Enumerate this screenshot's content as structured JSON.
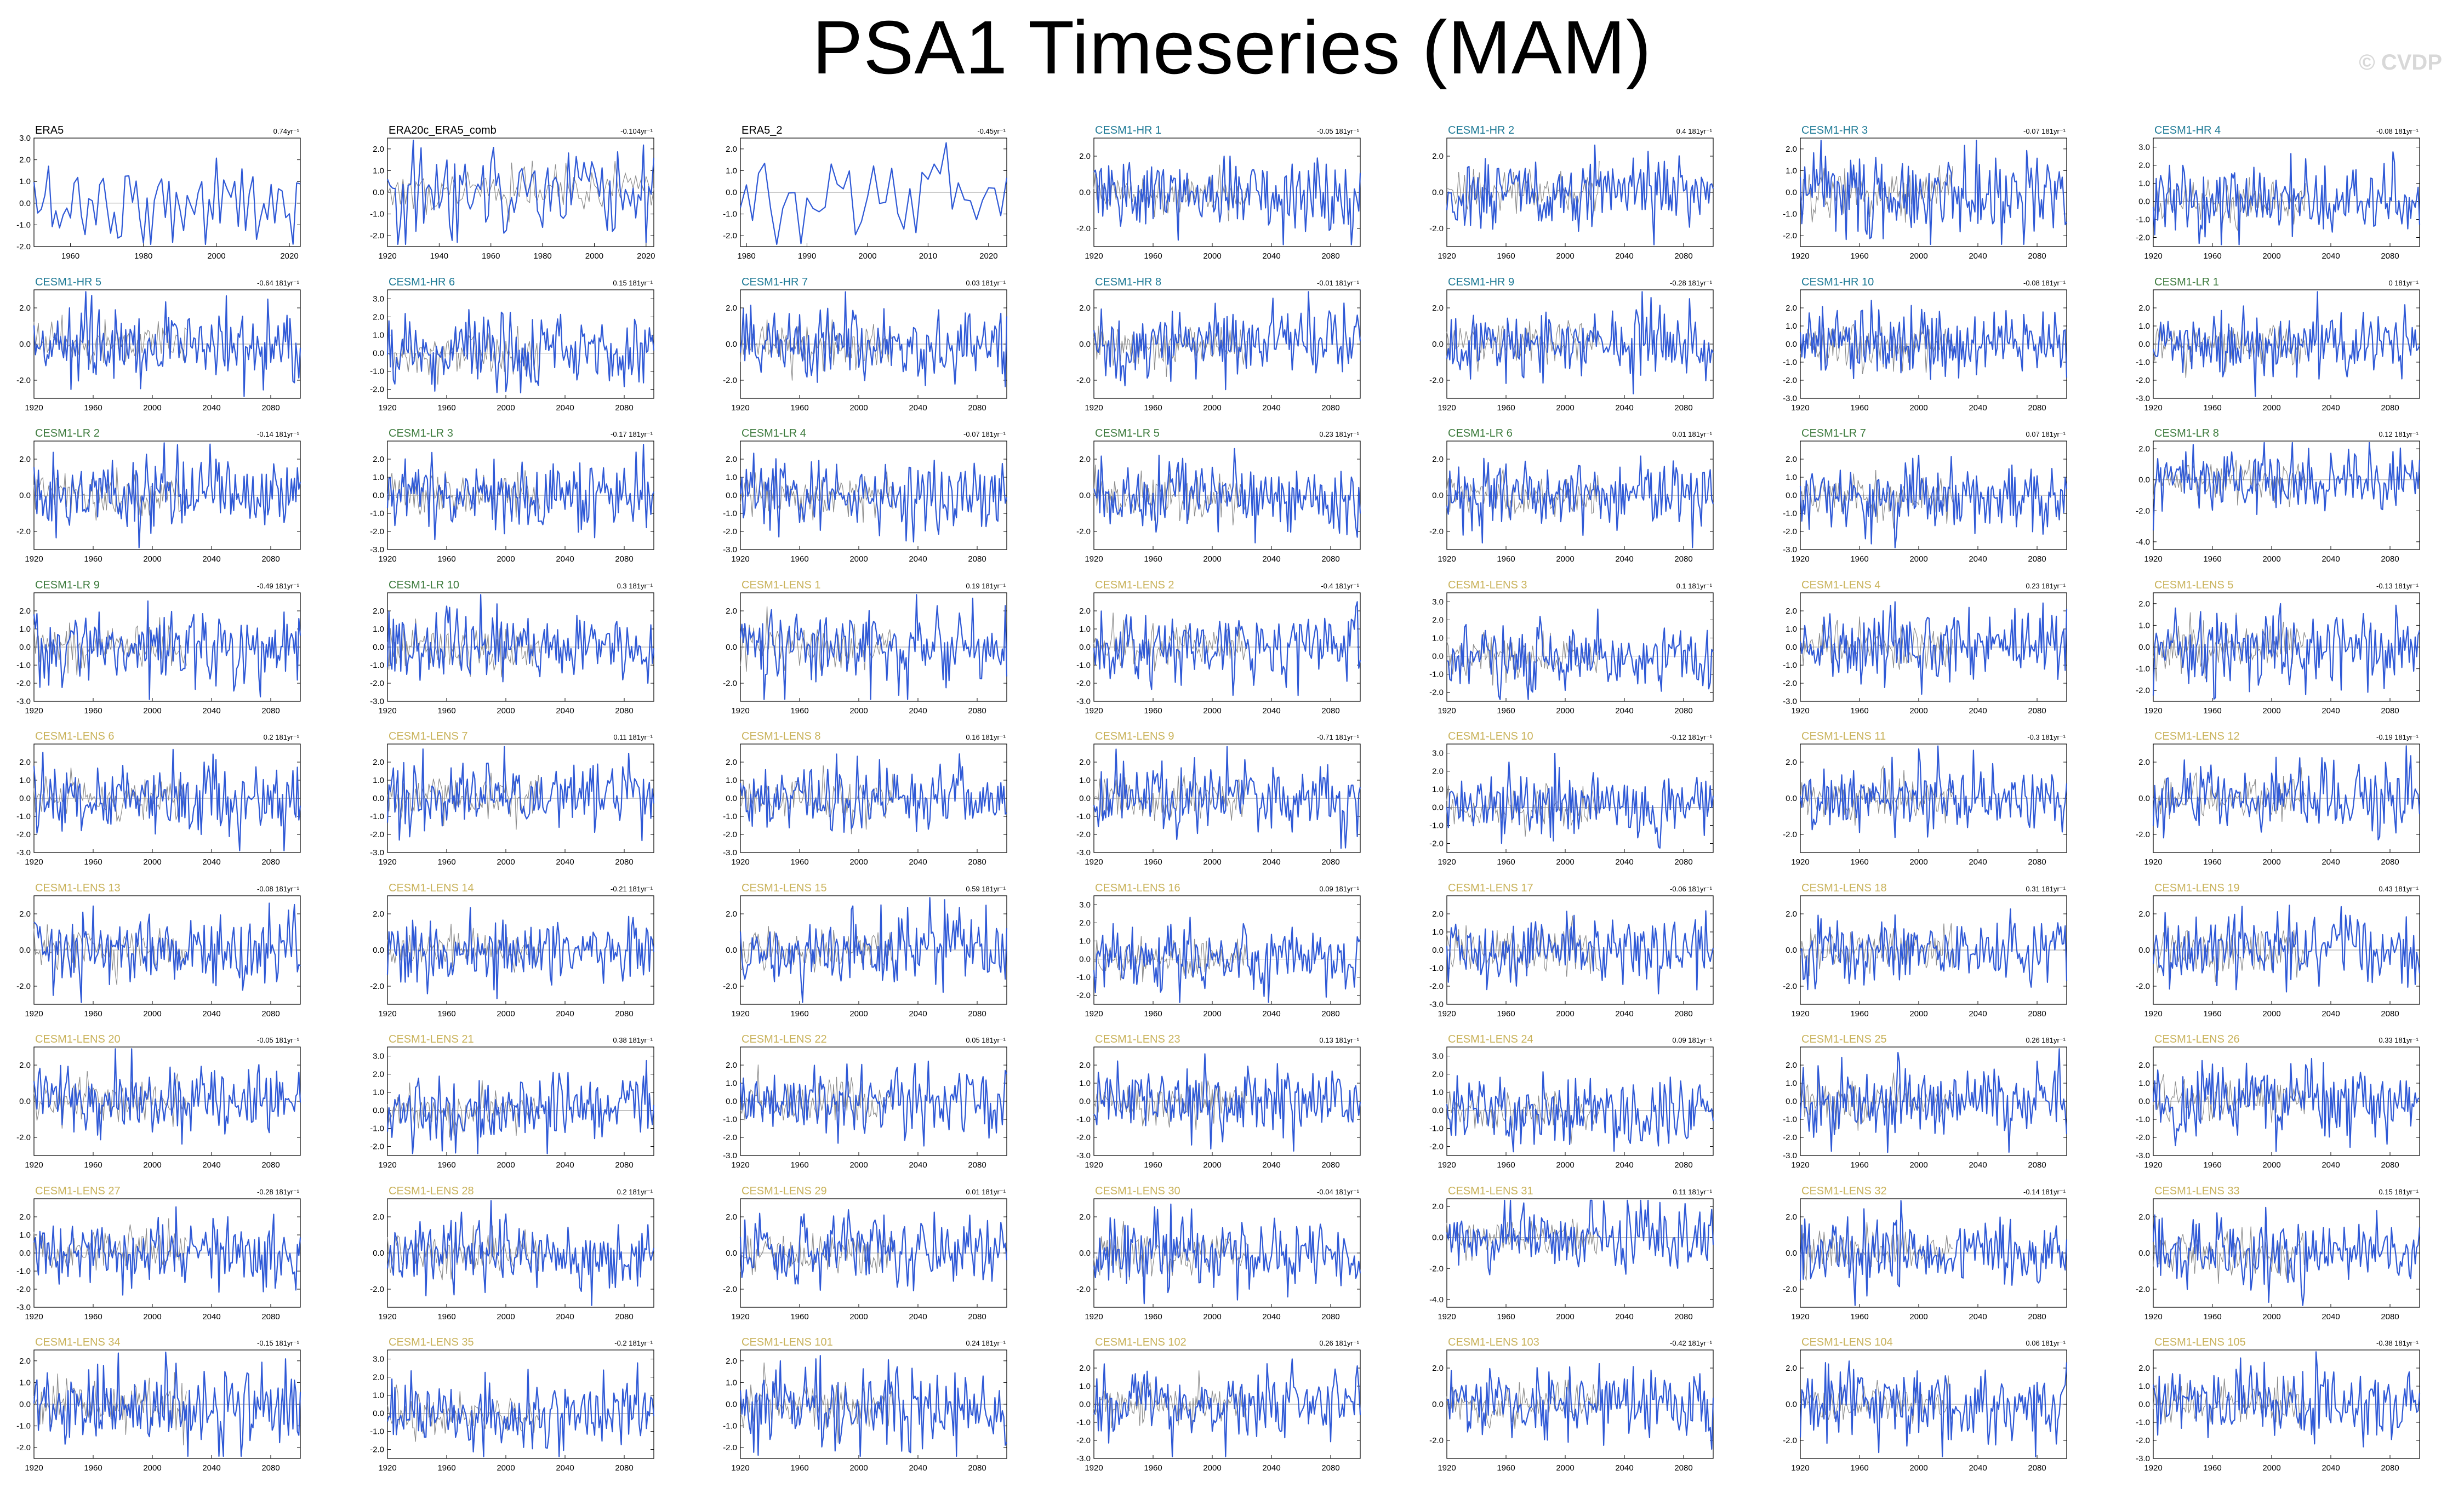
{
  "title": "PSA1 Timeseries (MAM)",
  "watermark": "© CVDP",
  "colors": {
    "series": "#2f59d6",
    "reference": "#8c8c8c",
    "zero_line": "#9a9a9a",
    "title_obs": "#000000",
    "title_hr": "#1e7a96",
    "title_lr": "#3c7a3c",
    "title_lens": "#c9b25a"
  },
  "chart_data": [
    {
      "type": "line",
      "title": "ERA5",
      "trend": "0.74yr⁻¹",
      "group": "obs",
      "x_range": [
        1950,
        2023
      ],
      "xticks": [
        1960,
        1980,
        2000,
        2020
      ],
      "yticks": [
        3.0,
        2.0,
        1.0,
        0.0,
        -1.0,
        -2.0
      ],
      "ylim": [
        -2.0,
        3.0
      ]
    },
    {
      "type": "line",
      "title": "ERA20c_ERA5_comb",
      "trend": "-0.104yr⁻¹",
      "group": "obs",
      "x_range": [
        1920,
        2023
      ],
      "xticks": [
        1920,
        1940,
        1960,
        1980,
        2000,
        2020
      ],
      "yticks": [
        2.0,
        1.0,
        0.0,
        -1.0,
        -2.0
      ],
      "ylim": [
        -2.5,
        2.5
      ]
    },
    {
      "type": "line",
      "title": "ERA5_2",
      "trend": "-0.45yr⁻¹",
      "group": "obs",
      "x_range": [
        1979,
        2023
      ],
      "xticks": [
        1980,
        1990,
        2000,
        2010,
        2020
      ],
      "yticks": [
        2.0,
        1.0,
        0.0,
        -1.0,
        -2.0
      ],
      "ylim": [
        -2.5,
        2.5
      ]
    },
    {
      "type": "line",
      "title": "CESM1-HR 1",
      "trend": "-0.05 181yr⁻¹",
      "group": "hr",
      "yticks": [
        2.0,
        0.0,
        -2.0
      ],
      "ylim": [
        -3.0,
        3.0
      ]
    },
    {
      "type": "line",
      "title": "CESM1-HR 2",
      "trend": "0.4 181yr⁻¹",
      "group": "hr",
      "yticks": [
        2.0,
        0.0,
        -2.0
      ],
      "ylim": [
        -3.0,
        3.0
      ]
    },
    {
      "type": "line",
      "title": "CESM1-HR 3",
      "trend": "-0.07 181yr⁻¹",
      "group": "hr",
      "yticks": [
        2.0,
        1.0,
        0.0,
        -1.0,
        -2.0
      ],
      "ylim": [
        -2.5,
        2.5
      ]
    },
    {
      "type": "line",
      "title": "CESM1-HR 4",
      "trend": "-0.08 181yr⁻¹",
      "group": "hr",
      "yticks": [
        3.0,
        2.0,
        1.0,
        0.0,
        -1.0,
        -2.0
      ],
      "ylim": [
        -2.5,
        3.5
      ]
    },
    {
      "type": "line",
      "title": "CESM1-HR 5",
      "trend": "-0.64 181yr⁻¹",
      "group": "hr",
      "yticks": [
        2.0,
        0.0,
        -2.0
      ],
      "ylim": [
        -3.0,
        3.0
      ]
    },
    {
      "type": "line",
      "title": "CESM1-HR 6",
      "trend": "0.15 181yr⁻¹",
      "group": "hr",
      "yticks": [
        3.0,
        2.0,
        1.0,
        0.0,
        -1.0,
        -2.0
      ],
      "ylim": [
        -2.5,
        3.5
      ]
    },
    {
      "type": "line",
      "title": "CESM1-HR 7",
      "trend": "0.03 181yr⁻¹",
      "group": "hr",
      "yticks": [
        2.0,
        0.0,
        -2.0
      ],
      "ylim": [
        -3.0,
        3.0
      ]
    },
    {
      "type": "line",
      "title": "CESM1-HR 8",
      "trend": "-0.01 181yr⁻¹",
      "group": "hr",
      "yticks": [
        2.0,
        0.0,
        -2.0
      ],
      "ylim": [
        -3.0,
        3.0
      ]
    },
    {
      "type": "line",
      "title": "CESM1-HR 9",
      "trend": "-0.28 181yr⁻¹",
      "group": "hr",
      "yticks": [
        2.0,
        0.0,
        -2.0
      ],
      "ylim": [
        -3.0,
        3.0
      ]
    },
    {
      "type": "line",
      "title": "CESM1-HR 10",
      "trend": "-0.08 181yr⁻¹",
      "group": "hr",
      "yticks": [
        2.0,
        1.0,
        0.0,
        -1.0,
        -2.0,
        -3.0
      ],
      "ylim": [
        -3.0,
        3.0
      ]
    },
    {
      "type": "line",
      "title": "CESM1-LR 1",
      "trend": "0 181yr⁻¹",
      "group": "lr",
      "yticks": [
        2.0,
        1.0,
        0.0,
        -1.0,
        -2.0,
        -3.0
      ],
      "ylim": [
        -3.0,
        3.0
      ]
    },
    {
      "type": "line",
      "title": "CESM1-LR 2",
      "trend": "-0.14 181yr⁻¹",
      "group": "lr",
      "yticks": [
        2.0,
        0.0,
        -2.0
      ],
      "ylim": [
        -3.0,
        3.0
      ]
    },
    {
      "type": "line",
      "title": "CESM1-LR 3",
      "trend": "-0.17 181yr⁻¹",
      "group": "lr",
      "yticks": [
        2.0,
        1.0,
        0.0,
        -1.0,
        -2.0,
        -3.0
      ],
      "ylim": [
        -3.0,
        3.0
      ]
    },
    {
      "type": "line",
      "title": "CESM1-LR 4",
      "trend": "-0.07 181yr⁻¹",
      "group": "lr",
      "yticks": [
        2.0,
        1.0,
        0.0,
        -1.0,
        -2.0,
        -3.0
      ],
      "ylim": [
        -3.0,
        3.0
      ]
    },
    {
      "type": "line",
      "title": "CESM1-LR 5",
      "trend": "0.23 181yr⁻¹",
      "group": "lr",
      "yticks": [
        2.0,
        0.0,
        -2.0
      ],
      "ylim": [
        -3.0,
        3.0
      ]
    },
    {
      "type": "line",
      "title": "CESM1-LR 6",
      "trend": "0.01 181yr⁻¹",
      "group": "lr",
      "yticks": [
        2.0,
        0.0,
        -2.0
      ],
      "ylim": [
        -3.0,
        3.0
      ]
    },
    {
      "type": "line",
      "title": "CESM1-LR 7",
      "trend": "0.07 181yr⁻¹",
      "group": "lr",
      "yticks": [
        2.0,
        1.0,
        0.0,
        -1.0,
        -2.0,
        -3.0
      ],
      "ylim": [
        -3.0,
        3.0
      ]
    },
    {
      "type": "line",
      "title": "CESM1-LR 8",
      "trend": "0.12 181yr⁻¹",
      "group": "lr",
      "yticks": [
        2.0,
        0.0,
        -2.0,
        -4.0
      ],
      "ylim": [
        -4.5,
        2.5
      ]
    },
    {
      "type": "line",
      "title": "CESM1-LR 9",
      "trend": "-0.49 181yr⁻¹",
      "group": "lr",
      "yticks": [
        2.0,
        1.0,
        0.0,
        -1.0,
        -2.0,
        -3.0
      ],
      "ylim": [
        -3.0,
        3.0
      ]
    },
    {
      "type": "line",
      "title": "CESM1-LR 10",
      "trend": "0.3 181yr⁻¹",
      "group": "lr",
      "yticks": [
        2.0,
        1.0,
        0.0,
        -1.0,
        -2.0,
        -3.0
      ],
      "ylim": [
        -3.0,
        3.0
      ]
    },
    {
      "type": "line",
      "title": "CESM1-LENS 1",
      "trend": "0.19 181yr⁻¹",
      "group": "lens",
      "yticks": [
        2.0,
        0.0,
        -2.0
      ],
      "ylim": [
        -3.0,
        3.0
      ]
    },
    {
      "type": "line",
      "title": "CESM1-LENS 2",
      "trend": "-0.4 181yr⁻¹",
      "group": "lens",
      "yticks": [
        2.0,
        1.0,
        0.0,
        -1.0,
        -2.0,
        -3.0
      ],
      "ylim": [
        -3.0,
        3.0
      ]
    },
    {
      "type": "line",
      "title": "CESM1-LENS 3",
      "trend": "0.1 181yr⁻¹",
      "group": "lens",
      "yticks": [
        3.0,
        2.0,
        1.0,
        0.0,
        -1.0,
        -2.0
      ],
      "ylim": [
        -2.5,
        3.5
      ]
    },
    {
      "type": "line",
      "title": "CESM1-LENS 4",
      "trend": "0.23 181yr⁻¹",
      "group": "lens",
      "yticks": [
        2.0,
        1.0,
        0.0,
        -1.0,
        -2.0,
        -3.0
      ],
      "ylim": [
        -3.0,
        3.0
      ]
    },
    {
      "type": "line",
      "title": "CESM1-LENS 5",
      "trend": "-0.13 181yr⁻¹",
      "group": "lens",
      "yticks": [
        2.0,
        1.0,
        0.0,
        -1.0,
        -2.0
      ],
      "ylim": [
        -2.5,
        2.5
      ]
    },
    {
      "type": "line",
      "title": "CESM1-LENS 6",
      "trend": "0.2 181yr⁻¹",
      "group": "lens",
      "yticks": [
        2.0,
        1.0,
        0.0,
        -1.0,
        -2.0,
        -3.0
      ],
      "ylim": [
        -3.0,
        3.0
      ]
    },
    {
      "type": "line",
      "title": "CESM1-LENS 7",
      "trend": "0.11 181yr⁻¹",
      "group": "lens",
      "yticks": [
        2.0,
        1.0,
        0.0,
        -1.0,
        -2.0,
        -3.0
      ],
      "ylim": [
        -3.0,
        3.0
      ]
    },
    {
      "type": "line",
      "title": "CESM1-LENS 8",
      "trend": "0.16 181yr⁻¹",
      "group": "lens",
      "yticks": [
        2.0,
        1.0,
        0.0,
        -1.0,
        -2.0,
        -3.0
      ],
      "ylim": [
        -3.0,
        3.0
      ]
    },
    {
      "type": "line",
      "title": "CESM1-LENS 9",
      "trend": "-0.71 181yr⁻¹",
      "group": "lens",
      "yticks": [
        2.0,
        1.0,
        0.0,
        -1.0,
        -2.0,
        -3.0
      ],
      "ylim": [
        -3.0,
        3.0
      ]
    },
    {
      "type": "line",
      "title": "CESM1-LENS 10",
      "trend": "-0.12 181yr⁻¹",
      "group": "lens",
      "yticks": [
        3.0,
        2.0,
        1.0,
        0.0,
        -1.0,
        -2.0
      ],
      "ylim": [
        -2.5,
        3.5
      ]
    },
    {
      "type": "line",
      "title": "CESM1-LENS 11",
      "trend": "-0.3 181yr⁻¹",
      "group": "lens",
      "yticks": [
        2.0,
        0.0,
        -2.0
      ],
      "ylim": [
        -3.0,
        3.0
      ]
    },
    {
      "type": "line",
      "title": "CESM1-LENS 12",
      "trend": "-0.19 181yr⁻¹",
      "group": "lens",
      "yticks": [
        2.0,
        0.0,
        -2.0
      ],
      "ylim": [
        -3.0,
        3.0
      ]
    },
    {
      "type": "line",
      "title": "CESM1-LENS 13",
      "trend": "-0.08 181yr⁻¹",
      "group": "lens",
      "yticks": [
        2.0,
        0.0,
        -2.0
      ],
      "ylim": [
        -3.0,
        3.0
      ]
    },
    {
      "type": "line",
      "title": "CESM1-LENS 14",
      "trend": "-0.21 181yr⁻¹",
      "group": "lens",
      "yticks": [
        2.0,
        0.0,
        -2.0
      ],
      "ylim": [
        -3.0,
        3.0
      ]
    },
    {
      "type": "line",
      "title": "CESM1-LENS 15",
      "trend": "0.59 181yr⁻¹",
      "group": "lens",
      "yticks": [
        2.0,
        0.0,
        -2.0
      ],
      "ylim": [
        -3.0,
        3.0
      ]
    },
    {
      "type": "line",
      "title": "CESM1-LENS 16",
      "trend": "0.09 181yr⁻¹",
      "group": "lens",
      "yticks": [
        3.0,
        2.0,
        1.0,
        0.0,
        -1.0,
        -2.0
      ],
      "ylim": [
        -2.5,
        3.5
      ]
    },
    {
      "type": "line",
      "title": "CESM1-LENS 17",
      "trend": "-0.06 181yr⁻¹",
      "group": "lens",
      "yticks": [
        2.0,
        1.0,
        0.0,
        -1.0,
        -2.0,
        -3.0
      ],
      "ylim": [
        -3.0,
        3.0
      ]
    },
    {
      "type": "line",
      "title": "CESM1-LENS 18",
      "trend": "0.31 181yr⁻¹",
      "group": "lens",
      "yticks": [
        2.0,
        0.0,
        -2.0
      ],
      "ylim": [
        -3.0,
        3.0
      ]
    },
    {
      "type": "line",
      "title": "CESM1-LENS 19",
      "trend": "0.43 181yr⁻¹",
      "group": "lens",
      "yticks": [
        2.0,
        0.0,
        -2.0
      ],
      "ylim": [
        -3.0,
        3.0
      ]
    },
    {
      "type": "line",
      "title": "CESM1-LENS 20",
      "trend": "-0.05 181yr⁻¹",
      "group": "lens",
      "yticks": [
        2.0,
        0.0,
        -2.0
      ],
      "ylim": [
        -3.0,
        3.0
      ]
    },
    {
      "type": "line",
      "title": "CESM1-LENS 21",
      "trend": "0.38 181yr⁻¹",
      "group": "lens",
      "yticks": [
        3.0,
        2.0,
        1.0,
        0.0,
        -1.0,
        -2.0
      ],
      "ylim": [
        -2.5,
        3.5
      ]
    },
    {
      "type": "line",
      "title": "CESM1-LENS 22",
      "trend": "0.05 181yr⁻¹",
      "group": "lens",
      "yticks": [
        2.0,
        1.0,
        0.0,
        -1.0,
        -2.0,
        -3.0
      ],
      "ylim": [
        -3.0,
        3.0
      ]
    },
    {
      "type": "line",
      "title": "CESM1-LENS 23",
      "trend": "0.13 181yr⁻¹",
      "group": "lens",
      "yticks": [
        2.0,
        1.0,
        0.0,
        -1.0,
        -2.0,
        -3.0
      ],
      "ylim": [
        -3.0,
        3.0
      ]
    },
    {
      "type": "line",
      "title": "CESM1-LENS 24",
      "trend": "0.09 181yr⁻¹",
      "group": "lens",
      "yticks": [
        3.0,
        2.0,
        1.0,
        0.0,
        -1.0,
        -2.0
      ],
      "ylim": [
        -2.5,
        3.5
      ]
    },
    {
      "type": "line",
      "title": "CESM1-LENS 25",
      "trend": "0.26 181yr⁻¹",
      "group": "lens",
      "yticks": [
        2.0,
        1.0,
        0.0,
        -1.0,
        -2.0,
        -3.0
      ],
      "ylim": [
        -3.0,
        3.0
      ]
    },
    {
      "type": "line",
      "title": "CESM1-LENS 26",
      "trend": "0.33 181yr⁻¹",
      "group": "lens",
      "yticks": [
        2.0,
        1.0,
        0.0,
        -1.0,
        -2.0,
        -3.0
      ],
      "ylim": [
        -3.0,
        3.0
      ]
    },
    {
      "type": "line",
      "title": "CESM1-LENS 27",
      "trend": "-0.28 181yr⁻¹",
      "group": "lens",
      "yticks": [
        2.0,
        1.0,
        0.0,
        -1.0,
        -2.0,
        -3.0
      ],
      "ylim": [
        -3.0,
        3.0
      ]
    },
    {
      "type": "line",
      "title": "CESM1-LENS 28",
      "trend": "0.2 181yr⁻¹",
      "group": "lens",
      "yticks": [
        2.0,
        0.0,
        -2.0
      ],
      "ylim": [
        -3.0,
        3.0
      ]
    },
    {
      "type": "line",
      "title": "CESM1-LENS 29",
      "trend": "0.01 181yr⁻¹",
      "group": "lens",
      "yticks": [
        2.0,
        0.0,
        -2.0
      ],
      "ylim": [
        -3.0,
        3.0
      ]
    },
    {
      "type": "line",
      "title": "CESM1-LENS 30",
      "trend": "-0.04 181yr⁻¹",
      "group": "lens",
      "yticks": [
        2.0,
        0.0,
        -2.0
      ],
      "ylim": [
        -3.0,
        3.0
      ]
    },
    {
      "type": "line",
      "title": "CESM1-LENS 31",
      "trend": "0.11 181yr⁻¹",
      "group": "lens",
      "yticks": [
        2.0,
        0.0,
        -2.0,
        -4.0
      ],
      "ylim": [
        -4.5,
        2.5
      ]
    },
    {
      "type": "line",
      "title": "CESM1-LENS 32",
      "trend": "-0.14 181yr⁻¹",
      "group": "lens",
      "yticks": [
        2.0,
        0.0,
        -2.0
      ],
      "ylim": [
        -3.0,
        3.0
      ]
    },
    {
      "type": "line",
      "title": "CESM1-LENS 33",
      "trend": "0.15 181yr⁻¹",
      "group": "lens",
      "yticks": [
        2.0,
        0.0,
        -2.0
      ],
      "ylim": [
        -3.0,
        3.0
      ]
    },
    {
      "type": "line",
      "title": "CESM1-LENS 34",
      "trend": "-0.15 181yr⁻¹",
      "group": "lens",
      "yticks": [
        2.0,
        1.0,
        0.0,
        -1.0,
        -2.0
      ],
      "ylim": [
        -2.5,
        2.5
      ]
    },
    {
      "type": "line",
      "title": "CESM1-LENS 35",
      "trend": "-0.2 181yr⁻¹",
      "group": "lens",
      "yticks": [
        3.0,
        2.0,
        1.0,
        0.0,
        -1.0,
        -2.0
      ],
      "ylim": [
        -2.5,
        3.5
      ]
    },
    {
      "type": "line",
      "title": "CESM1-LENS 101",
      "trend": "0.24 181yr⁻¹",
      "group": "lens",
      "yticks": [
        2.0,
        1.0,
        0.0,
        -1.0,
        -2.0
      ],
      "ylim": [
        -2.5,
        2.5
      ]
    },
    {
      "type": "line",
      "title": "CESM1-LENS 102",
      "trend": "0.26 181yr⁻¹",
      "group": "lens",
      "yticks": [
        2.0,
        1.0,
        0.0,
        -1.0,
        -2.0,
        -3.0
      ],
      "ylim": [
        -3.0,
        3.0
      ]
    },
    {
      "type": "line",
      "title": "CESM1-LENS 103",
      "trend": "-0.42 181yr⁻¹",
      "group": "lens",
      "yticks": [
        2.0,
        0.0,
        -2.0
      ],
      "ylim": [
        -3.0,
        3.0
      ]
    },
    {
      "type": "line",
      "title": "CESM1-LENS 104",
      "trend": "0.06 181yr⁻¹",
      "group": "lens",
      "yticks": [
        2.0,
        0.0,
        -2.0
      ],
      "ylim": [
        -3.0,
        3.0
      ]
    },
    {
      "type": "line",
      "title": "CESM1-LENS 105",
      "trend": "-0.38 181yr⁻¹",
      "group": "lens",
      "yticks": [
        2.0,
        1.0,
        0.0,
        -1.0,
        -2.0,
        -3.0
      ],
      "ylim": [
        -3.0,
        3.0
      ]
    }
  ],
  "model_x_range": [
    1920,
    2100
  ],
  "model_xticks": [
    1920,
    1960,
    2000,
    2040,
    2080
  ]
}
